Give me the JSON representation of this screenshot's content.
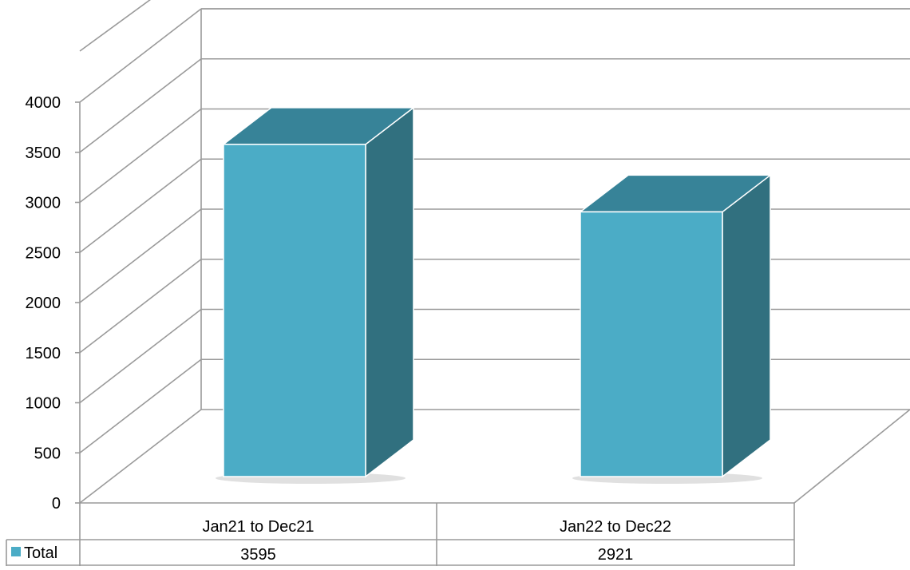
{
  "chart_data": {
    "type": "bar",
    "categories": [
      "Jan21 to Dec21",
      "Jan22 to Dec22"
    ],
    "series": [
      {
        "name": "Total",
        "values": [
          3595,
          2921
        ]
      }
    ],
    "yticks": [
      "0",
      "500",
      "1000",
      "1500",
      "2000",
      "2500",
      "3000",
      "3500",
      "4000"
    ],
    "ylim": [
      0,
      4000
    ],
    "grid": true,
    "legend": "table-left",
    "colors": {
      "front": "#4BACC6",
      "top": "#378398",
      "side": "#31707F",
      "grid": "#9a9a9a"
    }
  }
}
